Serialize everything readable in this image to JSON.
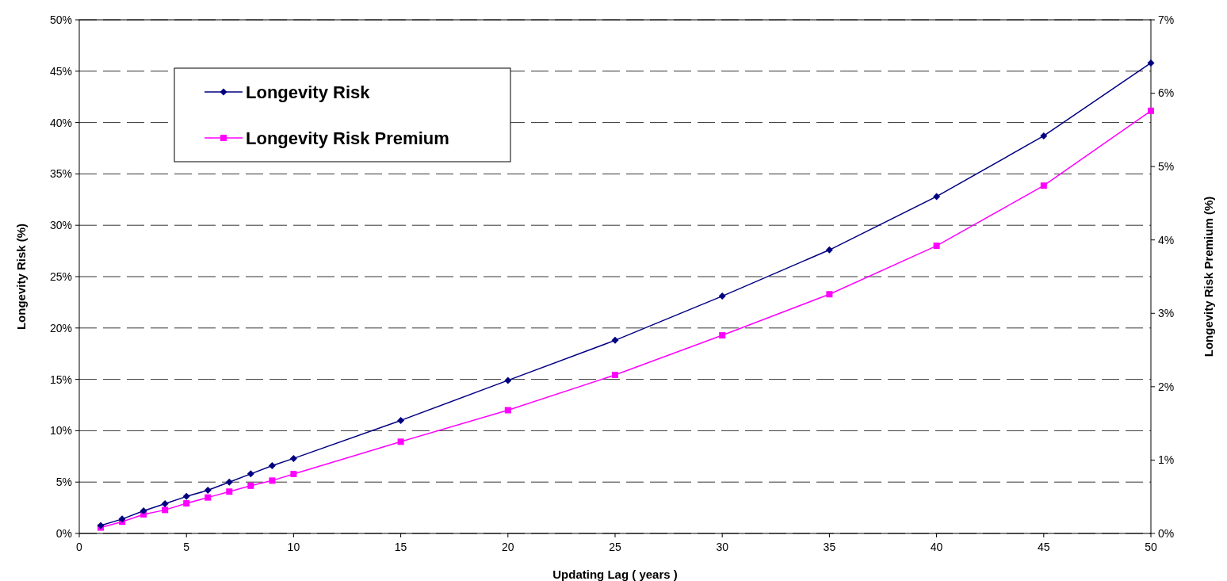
{
  "chart_data": {
    "type": "line",
    "xlabel": "Updating Lag ( years )",
    "ylabel": "Longevity Risk (%)",
    "y2label": "Longevity Risk Premium (%)",
    "x": [
      1,
      2,
      3,
      4,
      5,
      6,
      7,
      8,
      9,
      10,
      15,
      20,
      25,
      30,
      35,
      40,
      45,
      50
    ],
    "series": [
      {
        "name": "Longevity Risk",
        "color": "#000080",
        "marker": "diamond",
        "values": [
          0.77,
          1.4,
          2.2,
          2.9,
          3.6,
          4.2,
          5.0,
          5.8,
          6.6,
          7.3,
          11.0,
          14.9,
          18.8,
          23.1,
          27.6,
          32.8,
          38.7,
          45.8
        ]
      },
      {
        "name": "Longevity Risk Premium",
        "color": "#ff00ff",
        "marker": "square",
        "axis": "y2",
        "values": [
          0.08,
          0.16,
          0.26,
          0.32,
          0.41,
          0.49,
          0.57,
          0.65,
          0.72,
          0.81,
          1.25,
          1.68,
          2.16,
          2.7,
          3.26,
          3.92,
          4.74,
          5.76
        ]
      }
    ],
    "xlim": [
      0,
      50
    ],
    "xticks": [
      0,
      5,
      10,
      15,
      20,
      25,
      30,
      35,
      40,
      45,
      50
    ],
    "ylim": [
      0,
      50
    ],
    "yticks": [
      {
        "value": 0,
        "label": "0%"
      },
      {
        "value": 5,
        "label": "5%"
      },
      {
        "value": 10,
        "label": "10%"
      },
      {
        "value": 15,
        "label": "15%"
      },
      {
        "value": 20,
        "label": "20%"
      },
      {
        "value": 25,
        "label": "25%"
      },
      {
        "value": 30,
        "label": "30%"
      },
      {
        "value": 35,
        "label": "35%"
      },
      {
        "value": 40,
        "label": "40%"
      },
      {
        "value": 45,
        "label": "45%"
      },
      {
        "value": 50,
        "label": "50%"
      }
    ],
    "y2lim": [
      0,
      7
    ],
    "y2ticks": [
      {
        "value": 0,
        "label": "0%"
      },
      {
        "value": 1,
        "label": "1%"
      },
      {
        "value": 2,
        "label": "2%"
      },
      {
        "value": 3,
        "label": "3%"
      },
      {
        "value": 4,
        "label": "4%"
      },
      {
        "value": 5,
        "label": "5%"
      },
      {
        "value": 6,
        "label": "6%"
      },
      {
        "value": 7,
        "label": "7%"
      }
    ],
    "grid": "y",
    "legend": "top left",
    "line_style": "solid"
  }
}
